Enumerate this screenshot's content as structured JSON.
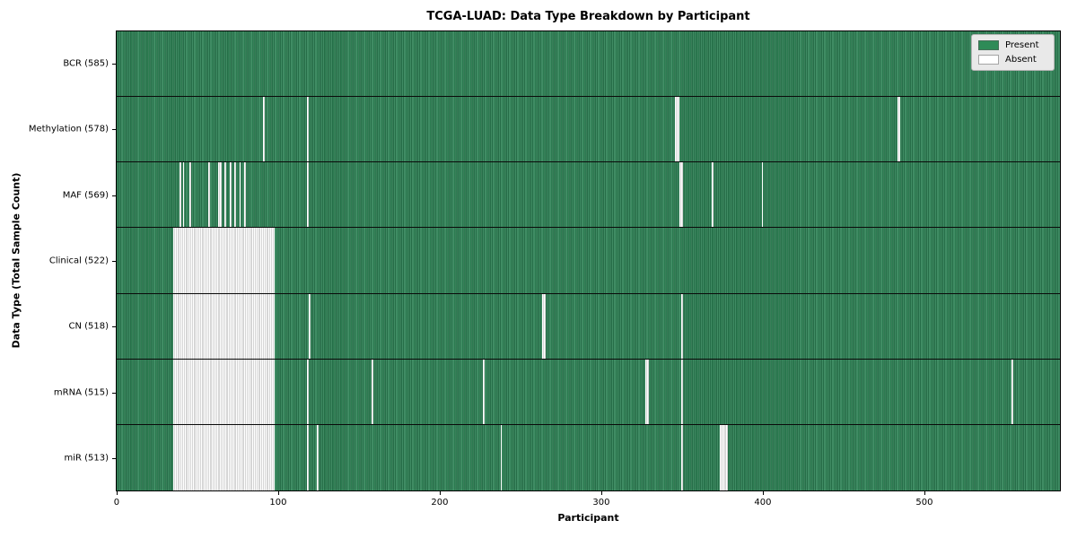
{
  "title": "TCGA-LUAD: Data Type Breakdown by Participant",
  "xlabel": "Participant",
  "ylabel": "Data Type (Total Sample Count)",
  "legend": {
    "present_label": "Present",
    "absent_label": "Absent",
    "present_color": "#2e8b57",
    "absent_color": "#ffffff"
  },
  "colors": {
    "present_green": "#2e8b57",
    "present_green_dark": "#1f603e",
    "present_green_light": "#549c77",
    "absent_white": "#ffffff",
    "legend_background": "#e9e9e9",
    "axes_frame": "#000000"
  },
  "chart_data": {
    "type": "heatmap",
    "title": "TCGA-LUAD: Data Type Breakdown by Participant",
    "xlabel": "Participant",
    "ylabel": "Data Type (Total Sample Count)",
    "n_participants": 585,
    "x_axis_range": [
      -0.5,
      584.5
    ],
    "x_ticks": [
      0,
      100,
      200,
      300,
      400,
      500
    ],
    "legend_entries": [
      "Present",
      "Absent"
    ],
    "legend_position": "upper right",
    "grid": false,
    "rows": [
      {
        "label": "BCR (585)",
        "data_type": "BCR",
        "present_count": 585,
        "absent_runs": []
      },
      {
        "label": "Methylation (578)",
        "data_type": "Methylation",
        "present_count": 578,
        "absent_runs": [
          [
            91,
            91
          ],
          [
            118,
            118
          ],
          [
            346,
            348
          ],
          [
            484,
            485
          ]
        ]
      },
      {
        "label": "MAF (569)",
        "data_type": "MAF",
        "present_count": 569,
        "absent_runs": [
          [
            39,
            39
          ],
          [
            41,
            41
          ],
          [
            45,
            45
          ],
          [
            57,
            57
          ],
          [
            63,
            64
          ],
          [
            67,
            67
          ],
          [
            70,
            70
          ],
          [
            73,
            73
          ],
          [
            76,
            76
          ],
          [
            79,
            79
          ],
          [
            118,
            118
          ],
          [
            349,
            350
          ],
          [
            369,
            369
          ],
          [
            400,
            400
          ]
        ]
      },
      {
        "label": "Clinical (522)",
        "data_type": "Clinical",
        "present_count": 522,
        "absent_runs": [
          [
            35,
            97
          ]
        ]
      },
      {
        "label": "CN (518)",
        "data_type": "CN",
        "present_count": 518,
        "absent_runs": [
          [
            35,
            97
          ],
          [
            119,
            119
          ],
          [
            264,
            265
          ],
          [
            350,
            350
          ]
        ]
      },
      {
        "label": "mRNA (515)",
        "data_type": "mRNA",
        "present_count": 515,
        "absent_runs": [
          [
            35,
            97
          ],
          [
            118,
            118
          ],
          [
            158,
            158
          ],
          [
            227,
            227
          ],
          [
            328,
            329
          ],
          [
            350,
            350
          ],
          [
            555,
            555
          ]
        ]
      },
      {
        "label": "miR (513)",
        "data_type": "miR",
        "present_count": 513,
        "absent_runs": [
          [
            35,
            97
          ],
          [
            118,
            118
          ],
          [
            124,
            124
          ],
          [
            238,
            238
          ],
          [
            350,
            350
          ],
          [
            374,
            378
          ]
        ]
      }
    ]
  }
}
